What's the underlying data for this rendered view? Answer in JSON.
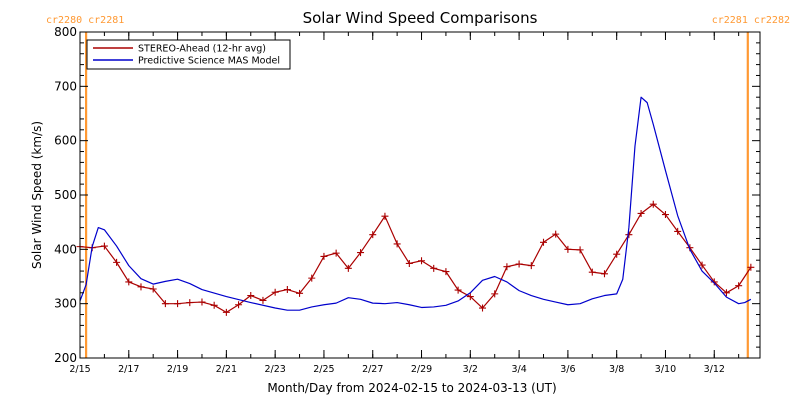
{
  "chart_data": {
    "type": "line",
    "title": "Solar Wind Speed Comparisons",
    "xlabel": "Month/Day from 2024-02-15 to 2024-03-13 (UT)",
    "ylabel": "Solar Wind Speed (km/s)",
    "x_unit": "date",
    "xlim": [
      "2024-02-15",
      "2024-03-13T21:00"
    ],
    "ylim": [
      200,
      800
    ],
    "y_ticks": [
      200,
      300,
      400,
      500,
      600,
      700,
      800
    ],
    "x_ticks": [
      {
        "date": "2024-02-15",
        "label": "2/15"
      },
      {
        "date": "2024-02-17",
        "label": "2/17"
      },
      {
        "date": "2024-02-19",
        "label": "2/19"
      },
      {
        "date": "2024-02-21",
        "label": "2/21"
      },
      {
        "date": "2024-02-23",
        "label": "2/23"
      },
      {
        "date": "2024-02-25",
        "label": "2/25"
      },
      {
        "date": "2024-02-27",
        "label": "2/27"
      },
      {
        "date": "2024-02-29",
        "label": "2/29"
      },
      {
        "date": "2024-03-02",
        "label": "3/2"
      },
      {
        "date": "2024-03-04",
        "label": "3/4"
      },
      {
        "date": "2024-03-06",
        "label": "3/6"
      },
      {
        "date": "2024-03-08",
        "label": "3/8"
      },
      {
        "date": "2024-03-10",
        "label": "3/10"
      },
      {
        "date": "2024-03-12",
        "label": "3/12"
      }
    ],
    "grid": false,
    "legend_position": "top-left",
    "series": [
      {
        "name": "STEREO-Ahead (12-hr avg)",
        "color": "#aa0000",
        "marker": "plus",
        "points": [
          [
            "2024-02-15T00:00",
            405
          ],
          [
            "2024-02-15T12:00",
            403
          ],
          [
            "2024-02-16T00:00",
            406
          ],
          [
            "2024-02-16T12:00",
            376
          ],
          [
            "2024-02-17T00:00",
            340
          ],
          [
            "2024-02-17T12:00",
            331
          ],
          [
            "2024-02-18T00:00",
            327
          ],
          [
            "2024-02-18T12:00",
            300
          ],
          [
            "2024-02-19T00:00",
            300
          ],
          [
            "2024-02-19T12:00",
            302
          ],
          [
            "2024-02-20T00:00",
            303
          ],
          [
            "2024-02-20T12:00",
            297
          ],
          [
            "2024-02-21T00:00",
            284
          ],
          [
            "2024-02-21T12:00",
            298
          ],
          [
            "2024-02-22T00:00",
            315
          ],
          [
            "2024-02-22T12:00",
            306
          ],
          [
            "2024-02-23T00:00",
            321
          ],
          [
            "2024-02-23T12:00",
            326
          ],
          [
            "2024-02-24T00:00",
            319
          ],
          [
            "2024-02-24T12:00",
            347
          ],
          [
            "2024-02-25T00:00",
            387
          ],
          [
            "2024-02-25T12:00",
            393
          ],
          [
            "2024-02-26T00:00",
            365
          ],
          [
            "2024-02-26T12:00",
            394
          ],
          [
            "2024-02-27T00:00",
            427
          ],
          [
            "2024-02-27T12:00",
            461
          ],
          [
            "2024-02-28T00:00",
            410
          ],
          [
            "2024-02-28T12:00",
            374
          ],
          [
            "2024-02-29T00:00",
            379
          ],
          [
            "2024-02-29T12:00",
            365
          ],
          [
            "2024-03-01T00:00",
            359
          ],
          [
            "2024-03-01T12:00",
            325
          ],
          [
            "2024-03-02T00:00",
            313
          ],
          [
            "2024-03-02T12:00",
            292
          ],
          [
            "2024-03-03T00:00",
            318
          ],
          [
            "2024-03-03T12:00",
            368
          ],
          [
            "2024-03-04T00:00",
            373
          ],
          [
            "2024-03-04T12:00",
            370
          ],
          [
            "2024-03-05T00:00",
            413
          ],
          [
            "2024-03-05T12:00",
            428
          ],
          [
            "2024-03-06T00:00",
            400
          ],
          [
            "2024-03-06T12:00",
            399
          ],
          [
            "2024-03-07T00:00",
            358
          ],
          [
            "2024-03-07T12:00",
            355
          ],
          [
            "2024-03-08T00:00",
            391
          ],
          [
            "2024-03-08T12:00",
            427
          ],
          [
            "2024-03-09T00:00",
            466
          ],
          [
            "2024-03-09T12:00",
            483
          ],
          [
            "2024-03-10T00:00",
            464
          ],
          [
            "2024-03-10T12:00",
            433
          ],
          [
            "2024-03-11T00:00",
            403
          ],
          [
            "2024-03-11T12:00",
            371
          ],
          [
            "2024-03-12T00:00",
            340
          ],
          [
            "2024-03-12T12:00",
            320
          ],
          [
            "2024-03-13T00:00",
            333
          ],
          [
            "2024-03-13T12:00",
            367
          ]
        ]
      },
      {
        "name": "Predictive Science MAS Model",
        "color": "#0000cc",
        "marker": "none",
        "points": [
          [
            "2024-02-15T00:00",
            305
          ],
          [
            "2024-02-15T06:00",
            335
          ],
          [
            "2024-02-15T12:00",
            405
          ],
          [
            "2024-02-15T18:00",
            440
          ],
          [
            "2024-02-16T00:00",
            436
          ],
          [
            "2024-02-16T12:00",
            406
          ],
          [
            "2024-02-17T00:00",
            370
          ],
          [
            "2024-02-17T12:00",
            346
          ],
          [
            "2024-02-18T00:00",
            336
          ],
          [
            "2024-02-18T12:00",
            341
          ],
          [
            "2024-02-19T00:00",
            345
          ],
          [
            "2024-02-19T12:00",
            337
          ],
          [
            "2024-02-20T00:00",
            326
          ],
          [
            "2024-02-21T00:00",
            313
          ],
          [
            "2024-02-22T00:00",
            302
          ],
          [
            "2024-02-23T00:00",
            292
          ],
          [
            "2024-02-23T12:00",
            288
          ],
          [
            "2024-02-24T00:00",
            288
          ],
          [
            "2024-02-24T12:00",
            294
          ],
          [
            "2024-02-25T00:00",
            298
          ],
          [
            "2024-02-25T12:00",
            301
          ],
          [
            "2024-02-26T00:00",
            311
          ],
          [
            "2024-02-26T12:00",
            308
          ],
          [
            "2024-02-27T00:00",
            301
          ],
          [
            "2024-02-27T12:00",
            300
          ],
          [
            "2024-02-28T00:00",
            302
          ],
          [
            "2024-02-28T12:00",
            298
          ],
          [
            "2024-02-29T00:00",
            293
          ],
          [
            "2024-02-29T12:00",
            294
          ],
          [
            "2024-03-01T00:00",
            297
          ],
          [
            "2024-03-01T12:00",
            305
          ],
          [
            "2024-03-02T00:00",
            320
          ],
          [
            "2024-03-02T12:00",
            343
          ],
          [
            "2024-03-03T00:00",
            350
          ],
          [
            "2024-03-03T12:00",
            340
          ],
          [
            "2024-03-04T00:00",
            324
          ],
          [
            "2024-03-04T12:00",
            315
          ],
          [
            "2024-03-05T00:00",
            308
          ],
          [
            "2024-03-05T12:00",
            303
          ],
          [
            "2024-03-06T00:00",
            298
          ],
          [
            "2024-03-06T12:00",
            300
          ],
          [
            "2024-03-07T00:00",
            309
          ],
          [
            "2024-03-07T12:00",
            315
          ],
          [
            "2024-03-08T00:00",
            318
          ],
          [
            "2024-03-08T06:00",
            345
          ],
          [
            "2024-03-08T12:00",
            440
          ],
          [
            "2024-03-08T18:00",
            590
          ],
          [
            "2024-03-09T00:00",
            680
          ],
          [
            "2024-03-09T06:00",
            670
          ],
          [
            "2024-03-09T12:00",
            630
          ],
          [
            "2024-03-10T00:00",
            545
          ],
          [
            "2024-03-10T12:00",
            462
          ],
          [
            "2024-03-11T00:00",
            400
          ],
          [
            "2024-03-11T12:00",
            360
          ],
          [
            "2024-03-12T00:00",
            338
          ],
          [
            "2024-03-12T12:00",
            312
          ],
          [
            "2024-03-13T00:00",
            300
          ],
          [
            "2024-03-13T06:00",
            302
          ],
          [
            "2024-03-13T12:00",
            308
          ]
        ]
      }
    ],
    "carrington_markers": {
      "color": "#ff9933",
      "lines": [
        {
          "date": "2024-02-15T06:00",
          "label": "cr2280 cr2281",
          "label_side": "left"
        },
        {
          "date": "2024-03-13T09:00",
          "label": "cr2281 cr2282",
          "label_side": "right"
        }
      ]
    }
  }
}
